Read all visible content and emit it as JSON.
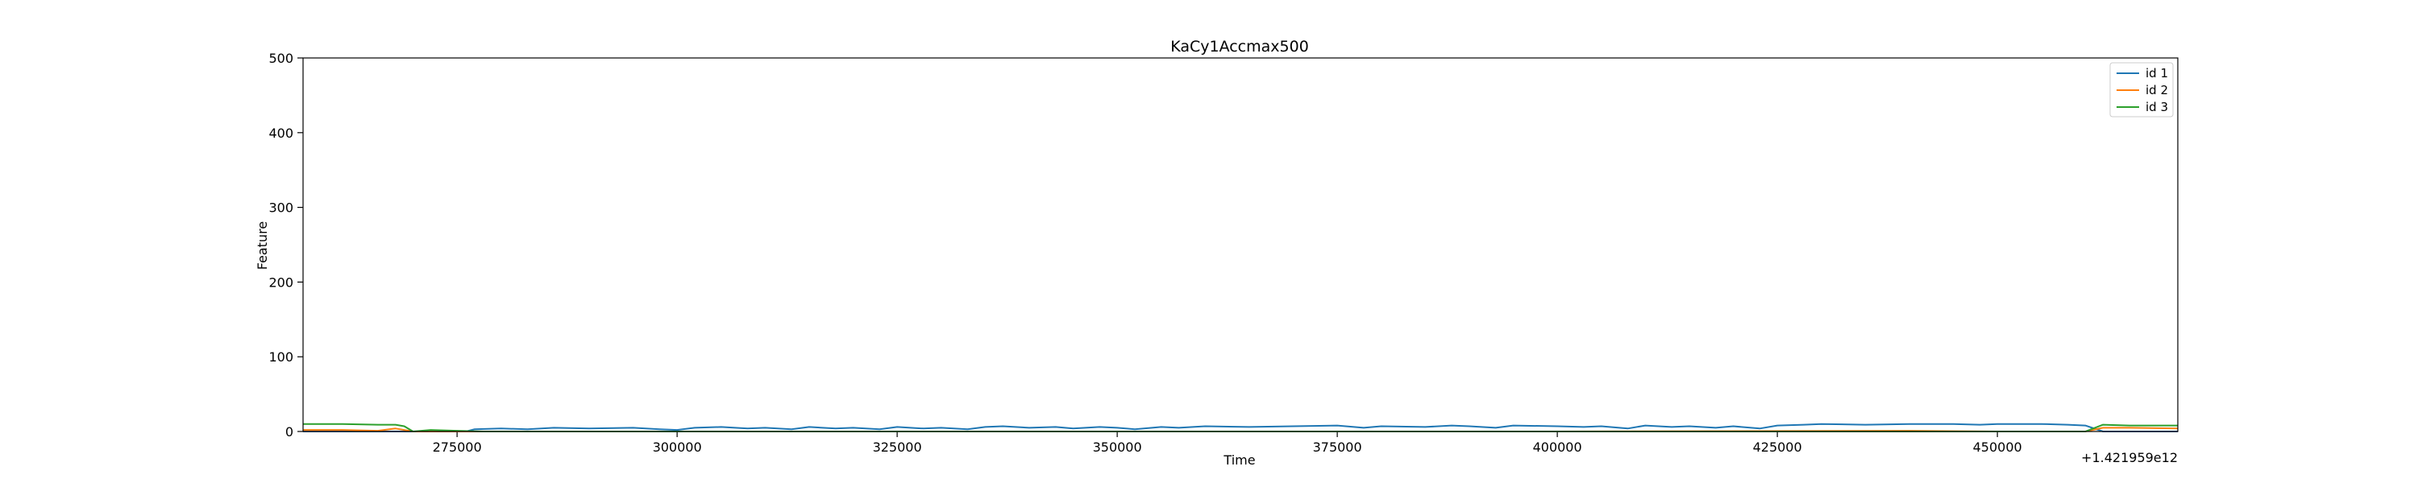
{
  "chart_data": {
    "type": "line",
    "title": "KaCy1Accmax500",
    "xlabel": "Time",
    "ylabel": "Feature",
    "x_offset_label": "+1.421959e12",
    "xlim": [
      257500,
      470500
    ],
    "ylim": [
      0,
      500
    ],
    "x_ticks": [
      275000,
      300000,
      325000,
      350000,
      375000,
      400000,
      425000,
      450000
    ],
    "x_tick_labels": [
      "275000",
      "300000",
      "325000",
      "350000",
      "375000",
      "400000",
      "425000",
      "450000"
    ],
    "y_ticks": [
      0,
      100,
      200,
      300,
      400,
      500
    ],
    "y_tick_labels": [
      "0",
      "100",
      "200",
      "300",
      "400",
      "500"
    ],
    "grid": false,
    "legend_position": "top-right",
    "series": [
      {
        "name": "id 1",
        "color": "#1f77b4",
        "x": [
          257500,
          265000,
          270000,
          276000,
          277000,
          280000,
          283000,
          286000,
          290000,
          295000,
          298000,
          300000,
          302000,
          305000,
          308000,
          310000,
          313000,
          315000,
          318000,
          320000,
          323000,
          325000,
          328000,
          330000,
          333000,
          335000,
          337000,
          340000,
          343000,
          345000,
          348000,
          350000,
          352000,
          355000,
          357000,
          360000,
          365000,
          370000,
          375000,
          378000,
          380000,
          385000,
          388000,
          390000,
          393000,
          395000,
          400000,
          403000,
          405000,
          408000,
          410000,
          413000,
          415000,
          418000,
          420000,
          423000,
          425000,
          428000,
          430000,
          435000,
          440000,
          445000,
          448000,
          450000,
          455000,
          458000,
          460000,
          462000,
          465000,
          470500
        ],
        "y": [
          0,
          0,
          0,
          0,
          3,
          4,
          3,
          5,
          4,
          5,
          3,
          2,
          5,
          6,
          4,
          5,
          3,
          6,
          4,
          5,
          3,
          6,
          4,
          5,
          3,
          6,
          7,
          5,
          6,
          4,
          6,
          5,
          3,
          6,
          5,
          7,
          6,
          7,
          8,
          5,
          7,
          6,
          8,
          7,
          5,
          8,
          7,
          6,
          7,
          4,
          8,
          6,
          7,
          5,
          7,
          4,
          8,
          9,
          10,
          9,
          10,
          10,
          9,
          10,
          10,
          9,
          8,
          0,
          0,
          0
        ]
      },
      {
        "name": "id 2",
        "color": "#ff7f0e",
        "x": [
          257500,
          262000,
          266000,
          268000,
          270000,
          300000,
          350000,
          400000,
          440000,
          450000,
          460000,
          462000,
          465000,
          470500
        ],
        "y": [
          2,
          2,
          1,
          4,
          0,
          0,
          0,
          0,
          1,
          0,
          0,
          5,
          5,
          4
        ]
      },
      {
        "name": "id 3",
        "color": "#2ca02c",
        "x": [
          257500,
          262000,
          266000,
          268000,
          269000,
          270000,
          272000,
          275000,
          278000,
          300000,
          350000,
          400000,
          450000,
          460000,
          462000,
          465000,
          470500
        ],
        "y": [
          10,
          10,
          9,
          9,
          7,
          0,
          2,
          1,
          0,
          0,
          0,
          0,
          0,
          0,
          9,
          8,
          8
        ]
      }
    ]
  }
}
